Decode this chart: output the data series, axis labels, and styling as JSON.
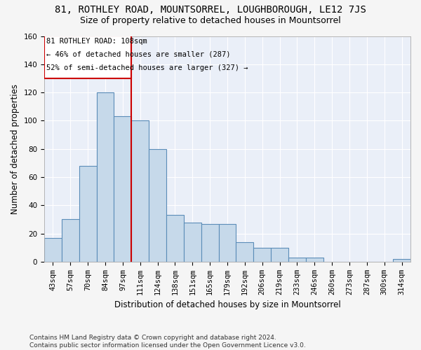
{
  "title": "81, ROTHLEY ROAD, MOUNTSORREL, LOUGHBOROUGH, LE12 7JS",
  "subtitle": "Size of property relative to detached houses in Mountsorrel",
  "xlabel": "Distribution of detached houses by size in Mountsorrel",
  "ylabel": "Number of detached properties",
  "footer": "Contains HM Land Registry data © Crown copyright and database right 2024.\nContains public sector information licensed under the Open Government Licence v3.0.",
  "categories": [
    "43sqm",
    "57sqm",
    "70sqm",
    "84sqm",
    "97sqm",
    "111sqm",
    "124sqm",
    "138sqm",
    "151sqm",
    "165sqm",
    "179sqm",
    "192sqm",
    "206sqm",
    "219sqm",
    "233sqm",
    "246sqm",
    "260sqm",
    "273sqm",
    "287sqm",
    "300sqm",
    "314sqm"
  ],
  "values": [
    17,
    30,
    68,
    120,
    103,
    100,
    80,
    33,
    28,
    27,
    27,
    14,
    10,
    10,
    3,
    3,
    0,
    0,
    0,
    0,
    2
  ],
  "bar_color": "#c6d9ea",
  "bar_edge_color": "#5b8db8",
  "red_line_x": 4.5,
  "red_line_label": "81 ROTHLEY ROAD: 108sqm",
  "annotation_line1": "← 46% of detached houses are smaller (287)",
  "annotation_line2": "52% of semi-detached houses are larger (327) →",
  "box_color": "#cc0000",
  "ylim": [
    0,
    160
  ],
  "yticks": [
    0,
    20,
    40,
    60,
    80,
    100,
    120,
    140,
    160
  ],
  "bg_color": "#eaeff8",
  "grid_color": "#ffffff",
  "title_fontsize": 10,
  "subtitle_fontsize": 9,
  "axis_label_fontsize": 8.5,
  "tick_fontsize": 7.5,
  "footer_fontsize": 6.5,
  "fig_bg_color": "#f5f5f5"
}
